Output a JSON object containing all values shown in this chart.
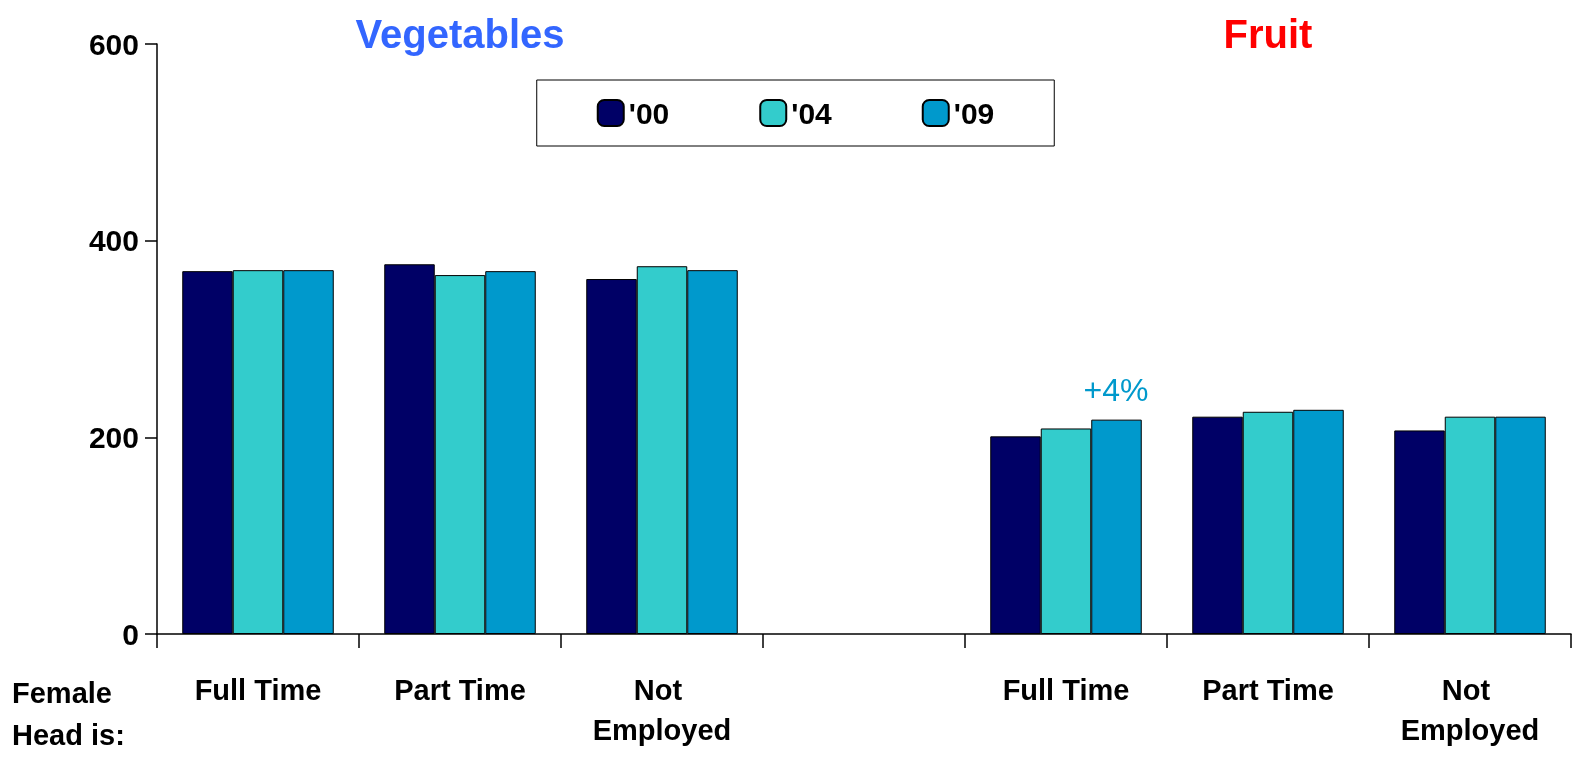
{
  "chart_data": {
    "type": "bar",
    "xlabel": "Female Head is:",
    "categories": [
      "Full Time",
      "Part Time",
      "Not Employed",
      null,
      "Full Time",
      "Part Time",
      "Not Employed"
    ],
    "series": [
      {
        "name": "'00",
        "color": "#000066",
        "values": [
          369,
          376,
          361,
          null,
          201,
          221,
          207
        ]
      },
      {
        "name": "'04",
        "color": "#33cccc",
        "values": [
          370,
          365,
          374,
          null,
          209,
          226,
          221
        ]
      },
      {
        "name": "'09",
        "color": "#0099cc",
        "values": [
          370,
          369,
          370,
          null,
          218,
          228,
          221
        ]
      }
    ],
    "ylim": [
      0,
      600
    ],
    "yticks": [
      0,
      200,
      400,
      600
    ],
    "grid": false,
    "legend": "top",
    "annotations": [
      "Vegetables",
      "Fruit",
      "+4%"
    ]
  }
}
